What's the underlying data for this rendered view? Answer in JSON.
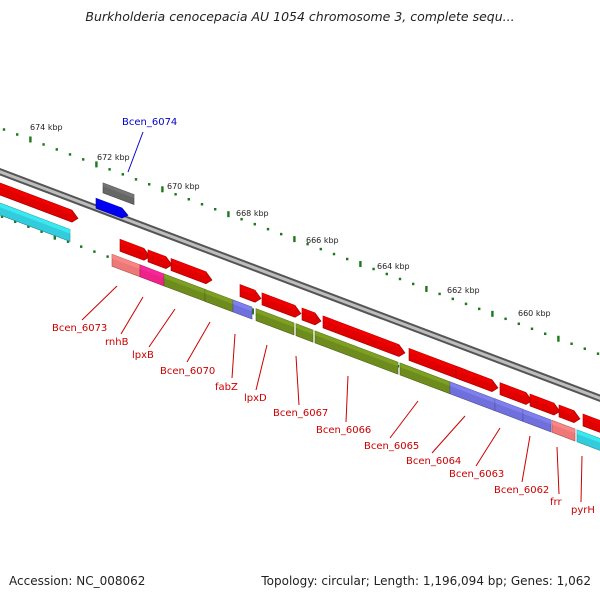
{
  "title": "Burkholderia cenocepacia AU 1054 chromosome 3, complete sequ...",
  "footer": {
    "accession": "Accession: NC_008062",
    "summary": "Topology: circular; Length: 1,196,094 bp; Genes: 1,062"
  },
  "colors": {
    "backbone": "#8a8a8a",
    "tick": "#1c7a1c",
    "cds": "#e00000",
    "olive": "#6e8c1e",
    "purple": "#7070dd",
    "pink": "#ee7777",
    "magenta": "#ee2288",
    "cyan": "#33ccdd",
    "gray": "#666666",
    "blue": "#0000ee",
    "label_red": "#cc0000",
    "label_blue": "#0000cc"
  },
  "ruler": [
    "674 kbp",
    "672 kbp",
    "670 kbp",
    "668 kbp",
    "666 kbp",
    "664 kbp",
    "662 kbp",
    "660 kbp"
  ],
  "genes": [
    {
      "name": "Bcen_6074",
      "color": "blue"
    },
    {
      "name": "Bcen_6073",
      "color": "red"
    },
    {
      "name": "rnhB",
      "color": "red"
    },
    {
      "name": "lpxB",
      "color": "red"
    },
    {
      "name": "Bcen_6070",
      "color": "red"
    },
    {
      "name": "fabZ",
      "color": "red"
    },
    {
      "name": "lpxD",
      "color": "red"
    },
    {
      "name": "Bcen_6067",
      "color": "red"
    },
    {
      "name": "Bcen_6066",
      "color": "red"
    },
    {
      "name": "Bcen_6065",
      "color": "red"
    },
    {
      "name": "Bcen_6064",
      "color": "red"
    },
    {
      "name": "Bcen_6063",
      "color": "red"
    },
    {
      "name": "Bcen_6062",
      "color": "red"
    },
    {
      "name": "frr",
      "color": "red"
    },
    {
      "name": "pyrH",
      "color": "red"
    }
  ]
}
